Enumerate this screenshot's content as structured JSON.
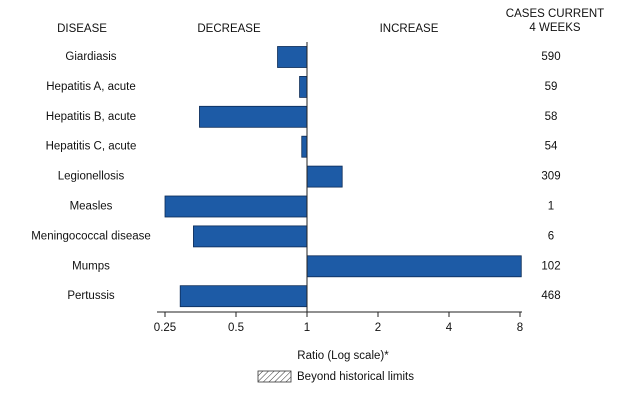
{
  "chart_data": {
    "type": "bar",
    "orientation": "horizontal",
    "column_headers": {
      "disease": "DISEASE",
      "decrease": "DECREASE",
      "increase": "INCREASE",
      "cases": [
        "CASES CURRENT",
        "4 WEEKS"
      ]
    },
    "categories": [
      "Giardiasis",
      "Hepatitis A, acute",
      "Hepatitis B, acute",
      "Hepatitis C, acute",
      "Legionellosis",
      "Measles",
      "Meningococcal disease",
      "Mumps",
      "Pertussis"
    ],
    "values": [
      0.75,
      0.93,
      0.35,
      0.95,
      1.41,
      0.25,
      0.33,
      8.1,
      0.29
    ],
    "cases": [
      590,
      59,
      58,
      54,
      309,
      1,
      6,
      102,
      468
    ],
    "color": "#1d5ba6",
    "x_scale": "log",
    "xlim": [
      0.25,
      8
    ],
    "xticks": [
      0.25,
      0.5,
      1,
      2,
      4,
      8
    ],
    "baseline": 1,
    "xlabel": "Ratio (Log scale)*",
    "legend_label": "Beyond historical limits"
  }
}
